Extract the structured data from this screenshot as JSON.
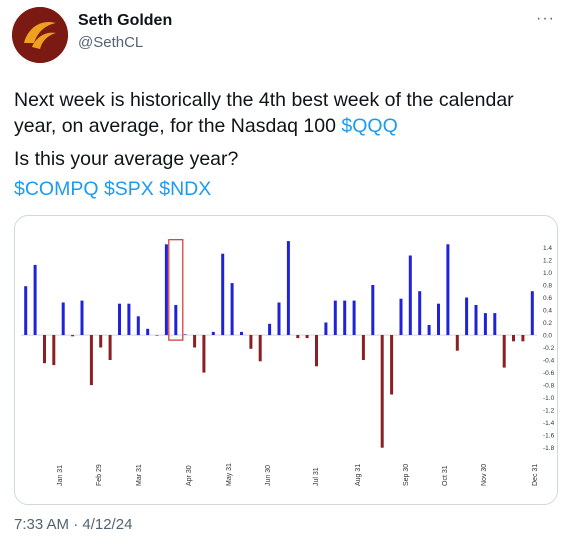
{
  "author": {
    "name": "Seth Golden",
    "handle": "@SethCL",
    "avatar_colors": {
      "bg": "#7a1a12",
      "mark": "#f0a020"
    }
  },
  "more_menu": {
    "icon": "more-horizontal-icon",
    "label": "···"
  },
  "tweet": {
    "line1_text": "Next week is historically the 4th best week of the calendar year, on average, for the Nasdaq 100 ",
    "line1_cashtag": "$QQQ",
    "line2": "Is this your average year?",
    "cashtags": [
      "$COMPQ",
      "$SPX",
      "$NDX"
    ]
  },
  "timestamp": "7:33 AM · 4/12/24",
  "colors": {
    "link": "#1d9bf0",
    "positive": "#1f22d6",
    "negative": "#8b1f22",
    "highlight": "#d9312b"
  },
  "chart_data": {
    "type": "bar",
    "x_labels": [
      "Jan 31",
      "Feb 29",
      "Mar 31",
      "Apr 30",
      "May 31",
      "Jun 30",
      "Jul 31",
      "Aug 31",
      "Sep 30",
      "Oct 31",
      "Nov 30",
      "Dec 31"
    ],
    "y_ticks": [
      "1.4",
      "1.2",
      "1.0",
      "0.8",
      "0.6",
      "0.4",
      "0.2",
      "0.0",
      "-0.2",
      "-0.4",
      "-0.6",
      "-0.8",
      "-1.0",
      "-1.2",
      "-1.4",
      "-1.6",
      "-1.8"
    ],
    "ylim": [
      -1.9,
      1.55
    ],
    "highlight_index": 16,
    "values": [
      0.78,
      1.12,
      -0.45,
      -0.48,
      0.52,
      -0.02,
      0.55,
      -0.8,
      -0.2,
      -0.4,
      0.5,
      0.5,
      0.3,
      0.1,
      0.0,
      1.45,
      0.48,
      0.01,
      -0.2,
      -0.6,
      0.05,
      1.3,
      0.83,
      0.05,
      -0.22,
      -0.42,
      0.18,
      0.52,
      1.5,
      -0.05,
      -0.05,
      -0.5,
      0.2,
      0.55,
      0.55,
      0.55,
      -0.4,
      0.8,
      -1.8,
      -0.95,
      0.58,
      1.27,
      0.7,
      0.16,
      0.5,
      1.45,
      -0.25,
      0.6,
      0.48,
      0.35,
      0.35,
      -0.52,
      -0.1,
      -0.1,
      0.7
    ]
  }
}
